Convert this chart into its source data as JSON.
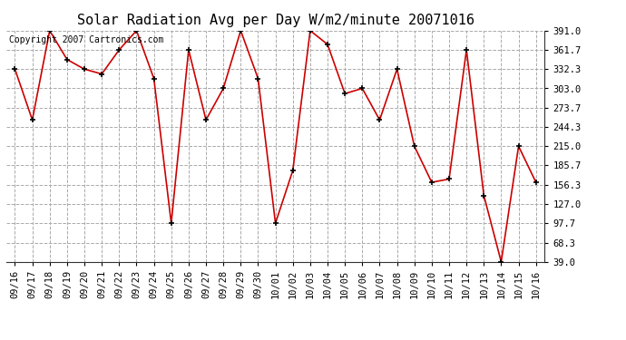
{
  "title": "Solar Radiation Avg per Day W/m2/minute 20071016",
  "copyright_text": "Copyright 2007 Cartronics.com",
  "dates": [
    "09/16",
    "09/17",
    "09/18",
    "09/19",
    "09/20",
    "09/21",
    "09/22",
    "09/23",
    "09/24",
    "09/25",
    "09/26",
    "09/27",
    "09/28",
    "09/29",
    "09/30",
    "10/01",
    "10/02",
    "10/03",
    "10/04",
    "10/05",
    "10/06",
    "10/07",
    "10/08",
    "10/09",
    "10/10",
    "10/11",
    "10/12",
    "10/13",
    "10/14",
    "10/15",
    "10/16"
  ],
  "values": [
    332.3,
    255.0,
    391.0,
    347.0,
    332.3,
    325.0,
    361.7,
    391.0,
    318.0,
    97.7,
    361.7,
    255.0,
    303.0,
    391.0,
    318.0,
    97.7,
    178.0,
    391.0,
    370.0,
    295.0,
    303.0,
    255.0,
    332.3,
    215.0,
    160.0,
    165.0,
    361.7,
    140.0,
    39.0,
    215.0,
    160.0
  ],
  "ylim": [
    39.0,
    391.0
  ],
  "yticks": [
    39.0,
    68.3,
    97.7,
    127.0,
    156.3,
    185.7,
    215.0,
    244.3,
    273.7,
    303.0,
    332.3,
    361.7,
    391.0
  ],
  "line_color": "#cc0000",
  "marker": "+",
  "marker_color": "#000000",
  "bg_color": "#ffffff",
  "grid_color": "#aaaaaa",
  "title_fontsize": 11,
  "copyright_fontsize": 7,
  "axis_fontsize": 7.5,
  "tick_font": "DejaVu Sans Mono"
}
